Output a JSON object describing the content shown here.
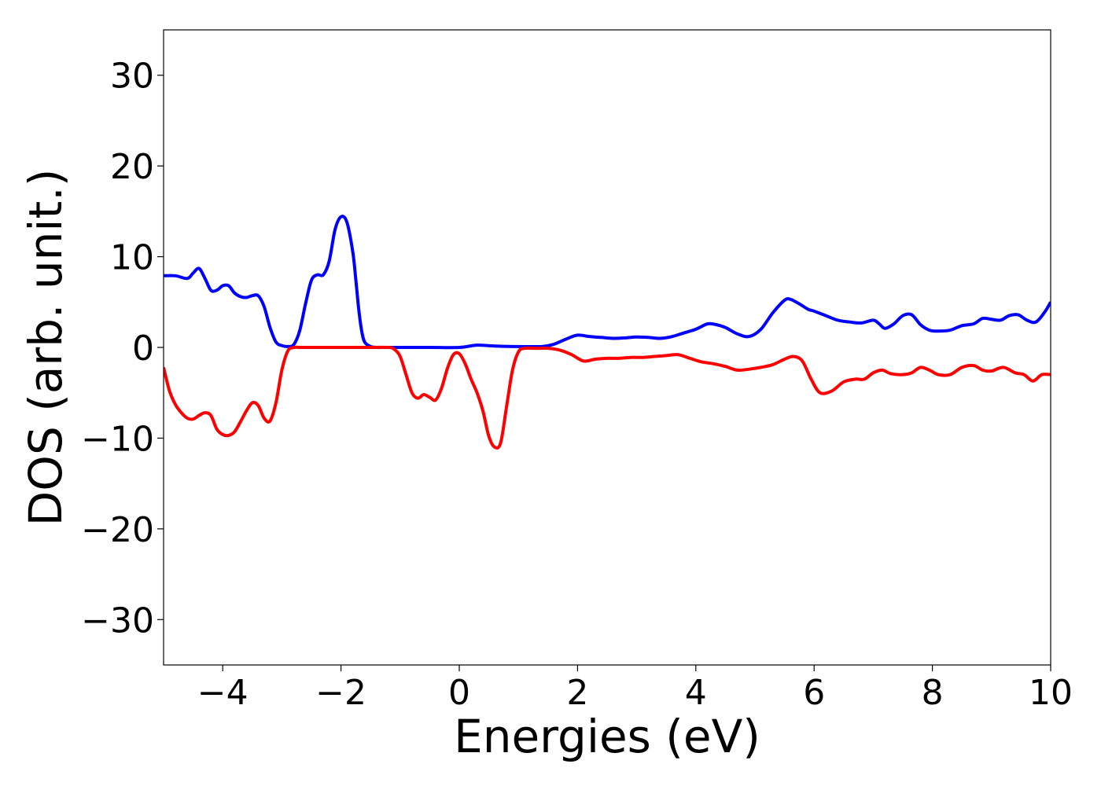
{
  "chart_data": {
    "type": "line",
    "title": "",
    "xlabel": "Energies (eV)",
    "ylabel": "DOS (arb. unit.)",
    "xlim": [
      -5,
      10
    ],
    "ylim": [
      -35,
      35
    ],
    "xticks": [
      -4,
      -2,
      0,
      2,
      4,
      6,
      8,
      10
    ],
    "xtick_labels": [
      "−4",
      "−2",
      "0",
      "2",
      "4",
      "6",
      "8",
      "10"
    ],
    "yticks": [
      -30,
      -20,
      -10,
      0,
      10,
      20,
      30
    ],
    "ytick_labels": [
      "−30",
      "−20",
      "−10",
      "0",
      "10",
      "20",
      "30"
    ],
    "grid": false,
    "legend": "none",
    "series": [
      {
        "color": "#0000ff",
        "x": [
          -5,
          -4.8,
          -4.6,
          -4.5,
          -4.4,
          -4.3,
          -4.2,
          -4.1,
          -4.0,
          -3.9,
          -3.8,
          -3.7,
          -3.6,
          -3.5,
          -3.4,
          -3.3,
          -3.2,
          -3.1,
          -3.0,
          -2.9,
          -2.8,
          -2.7,
          -2.6,
          -2.5,
          -2.4,
          -2.3,
          -2.2,
          -2.1,
          -2.0,
          -1.9,
          -1.8,
          -1.75,
          -1.7,
          -1.65,
          -1.6,
          -1.5,
          -1.4,
          -1.3,
          -1.2,
          -1.1,
          -1.0,
          -0.5,
          0,
          0.3,
          0.6,
          1.0,
          1.4,
          1.6,
          1.8,
          2.0,
          2.2,
          2.4,
          2.6,
          2.8,
          3.0,
          3.2,
          3.4,
          3.6,
          3.8,
          4.0,
          4.2,
          4.35,
          4.5,
          4.7,
          4.9,
          5.1,
          5.3,
          5.5,
          5.6,
          5.75,
          5.9,
          6.0,
          6.2,
          6.4,
          6.6,
          6.8,
          7.0,
          7.1,
          7.2,
          7.35,
          7.5,
          7.65,
          7.8,
          7.95,
          8.1,
          8.3,
          8.5,
          8.7,
          8.85,
          9.0,
          9.15,
          9.3,
          9.45,
          9.6,
          9.75,
          9.9,
          10.0
        ],
        "y": [
          7.9,
          7.9,
          7.6,
          8.2,
          8.7,
          7.6,
          6.3,
          6.3,
          6.8,
          6.8,
          6.0,
          5.6,
          5.5,
          5.7,
          5.7,
          4.5,
          2.2,
          0.6,
          0.2,
          0.1,
          0.3,
          1.8,
          4.8,
          7.4,
          8.0,
          8.0,
          9.5,
          13.0,
          14.4,
          13.8,
          10.5,
          7.5,
          4.2,
          1.8,
          0.6,
          0.1,
          0.0,
          0.0,
          0.0,
          0.0,
          0.0,
          0.0,
          0.0,
          0.25,
          0.15,
          0.1,
          0.1,
          0.35,
          0.9,
          1.35,
          1.2,
          1.1,
          1.0,
          1.05,
          1.15,
          1.1,
          1.0,
          1.2,
          1.6,
          2.0,
          2.6,
          2.5,
          2.2,
          1.5,
          1.2,
          2.0,
          3.8,
          5.2,
          5.3,
          4.8,
          4.2,
          4.0,
          3.5,
          3.0,
          2.8,
          2.7,
          3.0,
          2.6,
          2.1,
          2.6,
          3.5,
          3.6,
          2.5,
          1.9,
          1.8,
          1.9,
          2.4,
          2.6,
          3.2,
          3.1,
          3.0,
          3.5,
          3.6,
          3.0,
          2.8,
          3.9,
          5.0
        ]
      },
      {
        "color": "#ff0000",
        "x": [
          -5,
          -4.9,
          -4.8,
          -4.7,
          -4.6,
          -4.5,
          -4.4,
          -4.3,
          -4.2,
          -4.1,
          -4.0,
          -3.9,
          -3.8,
          -3.7,
          -3.6,
          -3.5,
          -3.4,
          -3.3,
          -3.2,
          -3.1,
          -3.0,
          -2.9,
          -2.8,
          -2.7,
          -2.6,
          -2.5,
          -2.0,
          -1.5,
          -1.2,
          -1.1,
          -1.0,
          -0.9,
          -0.8,
          -0.7,
          -0.6,
          -0.5,
          -0.4,
          -0.3,
          -0.2,
          -0.1,
          0.0,
          0.1,
          0.2,
          0.3,
          0.4,
          0.5,
          0.6,
          0.7,
          0.8,
          0.9,
          1.0,
          1.1,
          1.3,
          1.5,
          1.7,
          1.9,
          2.1,
          2.3,
          2.5,
          2.7,
          2.9,
          3.1,
          3.3,
          3.5,
          3.7,
          3.9,
          4.1,
          4.3,
          4.5,
          4.7,
          4.9,
          5.1,
          5.3,
          5.5,
          5.65,
          5.8,
          5.95,
          6.1,
          6.3,
          6.5,
          6.7,
          6.85,
          7.0,
          7.15,
          7.3,
          7.5,
          7.65,
          7.8,
          7.95,
          8.1,
          8.3,
          8.5,
          8.7,
          8.85,
          9.0,
          9.2,
          9.4,
          9.55,
          9.7,
          9.85,
          10.0
        ],
        "y": [
          -2.2,
          -4.8,
          -6.3,
          -7.2,
          -7.8,
          -7.9,
          -7.5,
          -7.2,
          -7.5,
          -9.0,
          -9.6,
          -9.7,
          -9.3,
          -8.2,
          -7.0,
          -6.1,
          -6.4,
          -7.8,
          -8.1,
          -6.1,
          -2.5,
          -0.4,
          0.0,
          0.0,
          0.0,
          0.0,
          0.0,
          0.0,
          0.0,
          -0.2,
          -1.0,
          -3.0,
          -5.0,
          -5.6,
          -5.2,
          -5.5,
          -5.8,
          -4.5,
          -2.3,
          -0.8,
          -0.7,
          -1.8,
          -3.5,
          -5.0,
          -7.0,
          -9.8,
          -11.0,
          -10.5,
          -6.5,
          -2.5,
          -0.5,
          -0.1,
          -0.1,
          -0.1,
          -0.3,
          -0.8,
          -1.5,
          -1.3,
          -1.2,
          -1.2,
          -1.1,
          -1.1,
          -1.0,
          -0.9,
          -0.8,
          -1.2,
          -1.6,
          -1.8,
          -2.1,
          -2.5,
          -2.4,
          -2.2,
          -1.9,
          -1.3,
          -1.0,
          -1.5,
          -3.5,
          -5.0,
          -4.8,
          -3.8,
          -3.5,
          -3.5,
          -2.8,
          -2.5,
          -2.9,
          -3.0,
          -2.8,
          -2.2,
          -2.5,
          -3.0,
          -3.0,
          -2.2,
          -2.0,
          -2.5,
          -2.6,
          -2.2,
          -2.8,
          -3.0,
          -3.7,
          -3.0,
          -3.0
        ]
      }
    ]
  }
}
